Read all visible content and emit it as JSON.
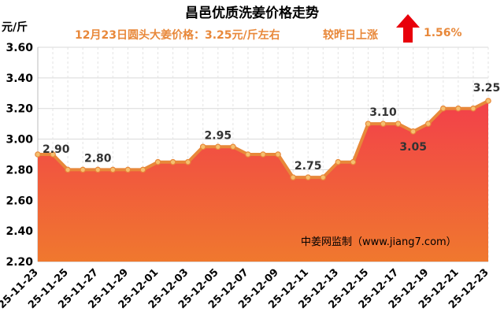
{
  "title": "昌邑优质洗姜价格走势",
  "subtitle": "12月23日圆头大姜价格：3.25元/斤左右",
  "compare_label": "较昨日上涨",
  "change_pct": "1.56%",
  "unit_label": "元/斤",
  "watermark": "中姜网监制（www.jiang7.com）",
  "colors": {
    "fill_top": "#F2404A",
    "fill_bottom": "#F0782E",
    "line": "#E8883A",
    "point_fill": "#F5C070",
    "text_accent": "#E8883A",
    "arrow": "#E8000B"
  },
  "chart_data": {
    "type": "area",
    "title": "昌邑优质洗姜价格走势",
    "ylabel": "元/斤",
    "ylim": [
      2.2,
      3.6
    ],
    "yticks": [
      "2.20",
      "2.40",
      "2.60",
      "2.80",
      "3.00",
      "3.20",
      "3.40",
      "3.60"
    ],
    "grid": true,
    "x": [
      "25-11-23",
      "25-11-24",
      "25-11-25",
      "25-11-26",
      "25-11-27",
      "25-11-28",
      "25-11-29",
      "25-11-30",
      "25-12-01",
      "25-12-02",
      "25-12-03",
      "25-12-04",
      "25-12-05",
      "25-12-06",
      "25-12-07",
      "25-12-08",
      "25-12-09",
      "25-12-10",
      "25-12-11",
      "25-12-12",
      "25-12-13",
      "25-12-14",
      "25-12-15",
      "25-12-16",
      "25-12-17",
      "25-12-18",
      "25-12-19",
      "25-12-20",
      "25-12-21",
      "25-12-22",
      "25-12-23"
    ],
    "xtick_labels": [
      "25-11-23",
      "25-11-25",
      "25-11-27",
      "25-11-29",
      "25-12-01",
      "25-12-03",
      "25-12-05",
      "25-12-07",
      "25-12-09",
      "25-12-11",
      "25-12-13",
      "25-12-15",
      "25-12-17",
      "25-12-19",
      "25-12-21",
      "25-12-23"
    ],
    "values": [
      2.9,
      2.9,
      2.8,
      2.8,
      2.8,
      2.8,
      2.8,
      2.8,
      2.85,
      2.85,
      2.85,
      2.95,
      2.95,
      2.95,
      2.9,
      2.9,
      2.9,
      2.75,
      2.75,
      2.75,
      2.85,
      2.85,
      3.1,
      3.1,
      3.1,
      3.05,
      3.1,
      3.2,
      3.2,
      3.2,
      3.25
    ],
    "annotations": [
      {
        "index": 0,
        "text": "2.90"
      },
      {
        "index": 4,
        "text": "2.80"
      },
      {
        "index": 12,
        "text": "2.95"
      },
      {
        "index": 18,
        "text": "2.75"
      },
      {
        "index": 23,
        "text": "3.10"
      },
      {
        "index": 25,
        "text": "3.05"
      },
      {
        "index": 30,
        "text": "3.25"
      }
    ]
  }
}
